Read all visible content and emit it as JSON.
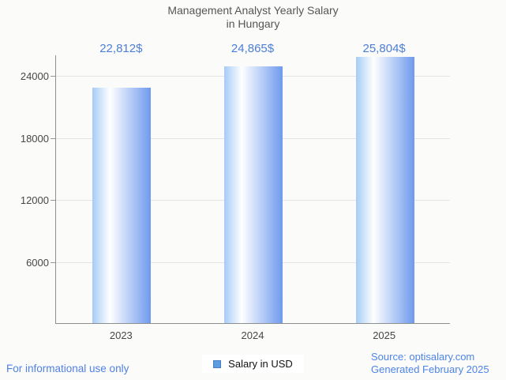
{
  "title": {
    "line1": "Management Analyst Yearly Salary",
    "line2": "in Hungary"
  },
  "chart_data": {
    "type": "bar",
    "title": "Management Analyst Yearly Salary in Hungary",
    "categories": [
      "2023",
      "2024",
      "2025"
    ],
    "values": [
      22812,
      24865,
      25804
    ],
    "value_labels": [
      "22,812$",
      "24,865$",
      "25,804$"
    ],
    "series": [
      {
        "name": "Salary in USD",
        "values": [
          22812,
          24865,
          25804
        ]
      }
    ],
    "xlabel": "",
    "ylabel": "",
    "yticks": [
      6000,
      12000,
      18000,
      24000
    ],
    "ylim": [
      0,
      26000
    ],
    "grid": true,
    "legend_position": "bottom"
  },
  "legend": {
    "label": "Salary in USD",
    "marker_color": "#5c9ce0"
  },
  "footer": {
    "disclaimer": "For informational use only",
    "source_line1": "Source: optisalary.com",
    "source_line2": "Generated February 2025"
  },
  "colors": {
    "background": "#fbfbfa",
    "title_text": "#565656",
    "value_label_text": "#4d7ed6",
    "footer_text": "#5181e4",
    "bar_gradient_left": "#a6cbf7",
    "bar_gradient_mid": "#ffffff",
    "bar_gradient_right": "#6e9aed",
    "axis_line": "#8e8e8e",
    "gridline": "#e4e4e4",
    "tick_label_text": "#474747"
  }
}
